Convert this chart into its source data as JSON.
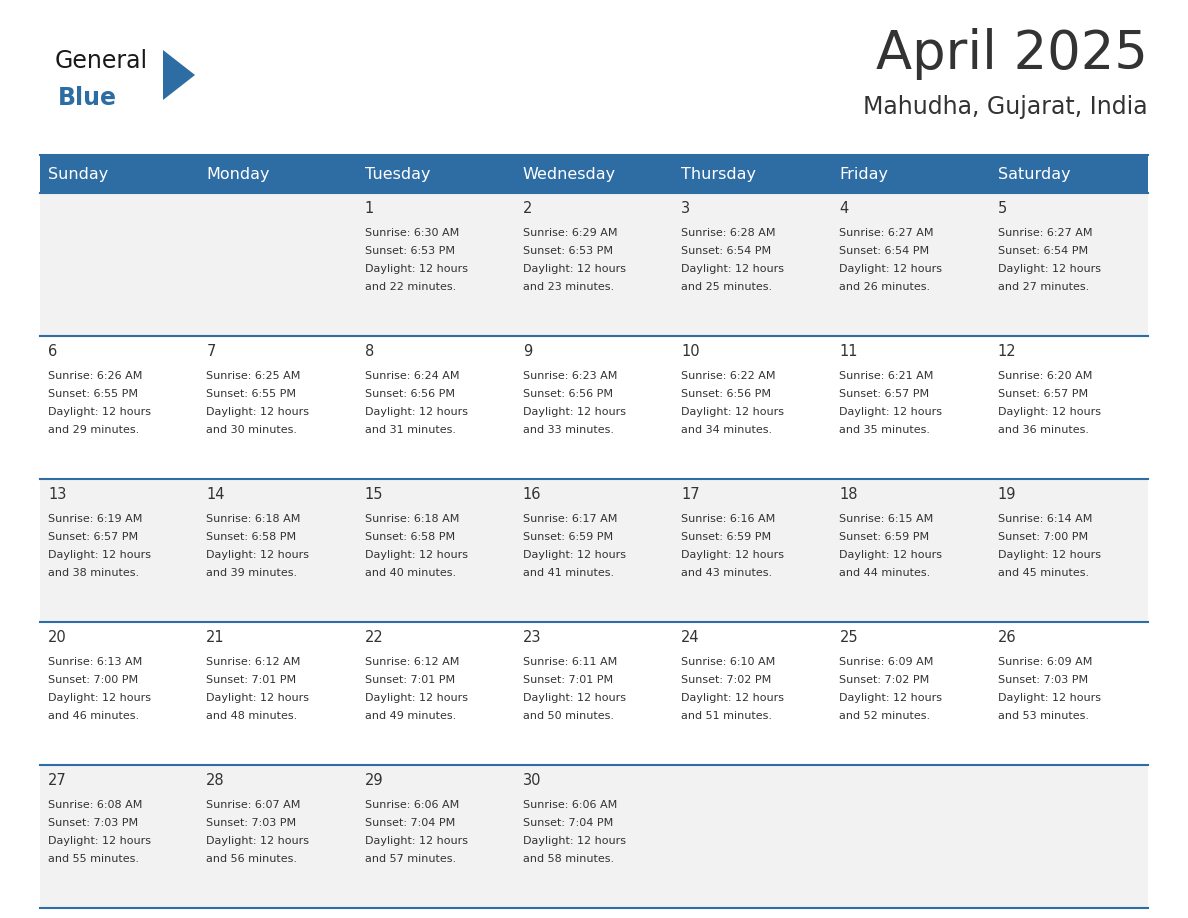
{
  "title": "April 2025",
  "subtitle": "Mahudha, Gujarat, India",
  "header_bg": "#2E6DA4",
  "header_text_color": "#FFFFFF",
  "row_bg_even": "#F2F2F2",
  "row_bg_odd": "#FFFFFF",
  "divider_color": "#2E6DA4",
  "days_of_week": [
    "Sunday",
    "Monday",
    "Tuesday",
    "Wednesday",
    "Thursday",
    "Friday",
    "Saturday"
  ],
  "calendar": [
    [
      {
        "day": "",
        "sunrise": "",
        "sunset": "",
        "daylight": ""
      },
      {
        "day": "",
        "sunrise": "",
        "sunset": "",
        "daylight": ""
      },
      {
        "day": "1",
        "sunrise": "Sunrise: 6:30 AM",
        "sunset": "Sunset: 6:53 PM",
        "daylight": "Daylight: 12 hours\nand 22 minutes."
      },
      {
        "day": "2",
        "sunrise": "Sunrise: 6:29 AM",
        "sunset": "Sunset: 6:53 PM",
        "daylight": "Daylight: 12 hours\nand 23 minutes."
      },
      {
        "day": "3",
        "sunrise": "Sunrise: 6:28 AM",
        "sunset": "Sunset: 6:54 PM",
        "daylight": "Daylight: 12 hours\nand 25 minutes."
      },
      {
        "day": "4",
        "sunrise": "Sunrise: 6:27 AM",
        "sunset": "Sunset: 6:54 PM",
        "daylight": "Daylight: 12 hours\nand 26 minutes."
      },
      {
        "day": "5",
        "sunrise": "Sunrise: 6:27 AM",
        "sunset": "Sunset: 6:54 PM",
        "daylight": "Daylight: 12 hours\nand 27 minutes."
      }
    ],
    [
      {
        "day": "6",
        "sunrise": "Sunrise: 6:26 AM",
        "sunset": "Sunset: 6:55 PM",
        "daylight": "Daylight: 12 hours\nand 29 minutes."
      },
      {
        "day": "7",
        "sunrise": "Sunrise: 6:25 AM",
        "sunset": "Sunset: 6:55 PM",
        "daylight": "Daylight: 12 hours\nand 30 minutes."
      },
      {
        "day": "8",
        "sunrise": "Sunrise: 6:24 AM",
        "sunset": "Sunset: 6:56 PM",
        "daylight": "Daylight: 12 hours\nand 31 minutes."
      },
      {
        "day": "9",
        "sunrise": "Sunrise: 6:23 AM",
        "sunset": "Sunset: 6:56 PM",
        "daylight": "Daylight: 12 hours\nand 33 minutes."
      },
      {
        "day": "10",
        "sunrise": "Sunrise: 6:22 AM",
        "sunset": "Sunset: 6:56 PM",
        "daylight": "Daylight: 12 hours\nand 34 minutes."
      },
      {
        "day": "11",
        "sunrise": "Sunrise: 6:21 AM",
        "sunset": "Sunset: 6:57 PM",
        "daylight": "Daylight: 12 hours\nand 35 minutes."
      },
      {
        "day": "12",
        "sunrise": "Sunrise: 6:20 AM",
        "sunset": "Sunset: 6:57 PM",
        "daylight": "Daylight: 12 hours\nand 36 minutes."
      }
    ],
    [
      {
        "day": "13",
        "sunrise": "Sunrise: 6:19 AM",
        "sunset": "Sunset: 6:57 PM",
        "daylight": "Daylight: 12 hours\nand 38 minutes."
      },
      {
        "day": "14",
        "sunrise": "Sunrise: 6:18 AM",
        "sunset": "Sunset: 6:58 PM",
        "daylight": "Daylight: 12 hours\nand 39 minutes."
      },
      {
        "day": "15",
        "sunrise": "Sunrise: 6:18 AM",
        "sunset": "Sunset: 6:58 PM",
        "daylight": "Daylight: 12 hours\nand 40 minutes."
      },
      {
        "day": "16",
        "sunrise": "Sunrise: 6:17 AM",
        "sunset": "Sunset: 6:59 PM",
        "daylight": "Daylight: 12 hours\nand 41 minutes."
      },
      {
        "day": "17",
        "sunrise": "Sunrise: 6:16 AM",
        "sunset": "Sunset: 6:59 PM",
        "daylight": "Daylight: 12 hours\nand 43 minutes."
      },
      {
        "day": "18",
        "sunrise": "Sunrise: 6:15 AM",
        "sunset": "Sunset: 6:59 PM",
        "daylight": "Daylight: 12 hours\nand 44 minutes."
      },
      {
        "day": "19",
        "sunrise": "Sunrise: 6:14 AM",
        "sunset": "Sunset: 7:00 PM",
        "daylight": "Daylight: 12 hours\nand 45 minutes."
      }
    ],
    [
      {
        "day": "20",
        "sunrise": "Sunrise: 6:13 AM",
        "sunset": "Sunset: 7:00 PM",
        "daylight": "Daylight: 12 hours\nand 46 minutes."
      },
      {
        "day": "21",
        "sunrise": "Sunrise: 6:12 AM",
        "sunset": "Sunset: 7:01 PM",
        "daylight": "Daylight: 12 hours\nand 48 minutes."
      },
      {
        "day": "22",
        "sunrise": "Sunrise: 6:12 AM",
        "sunset": "Sunset: 7:01 PM",
        "daylight": "Daylight: 12 hours\nand 49 minutes."
      },
      {
        "day": "23",
        "sunrise": "Sunrise: 6:11 AM",
        "sunset": "Sunset: 7:01 PM",
        "daylight": "Daylight: 12 hours\nand 50 minutes."
      },
      {
        "day": "24",
        "sunrise": "Sunrise: 6:10 AM",
        "sunset": "Sunset: 7:02 PM",
        "daylight": "Daylight: 12 hours\nand 51 minutes."
      },
      {
        "day": "25",
        "sunrise": "Sunrise: 6:09 AM",
        "sunset": "Sunset: 7:02 PM",
        "daylight": "Daylight: 12 hours\nand 52 minutes."
      },
      {
        "day": "26",
        "sunrise": "Sunrise: 6:09 AM",
        "sunset": "Sunset: 7:03 PM",
        "daylight": "Daylight: 12 hours\nand 53 minutes."
      }
    ],
    [
      {
        "day": "27",
        "sunrise": "Sunrise: 6:08 AM",
        "sunset": "Sunset: 7:03 PM",
        "daylight": "Daylight: 12 hours\nand 55 minutes."
      },
      {
        "day": "28",
        "sunrise": "Sunrise: 6:07 AM",
        "sunset": "Sunset: 7:03 PM",
        "daylight": "Daylight: 12 hours\nand 56 minutes."
      },
      {
        "day": "29",
        "sunrise": "Sunrise: 6:06 AM",
        "sunset": "Sunset: 7:04 PM",
        "daylight": "Daylight: 12 hours\nand 57 minutes."
      },
      {
        "day": "30",
        "sunrise": "Sunrise: 6:06 AM",
        "sunset": "Sunset: 7:04 PM",
        "daylight": "Daylight: 12 hours\nand 58 minutes."
      },
      {
        "day": "",
        "sunrise": "",
        "sunset": "",
        "daylight": ""
      },
      {
        "day": "",
        "sunrise": "",
        "sunset": "",
        "daylight": ""
      },
      {
        "day": "",
        "sunrise": "",
        "sunset": "",
        "daylight": ""
      }
    ]
  ],
  "logo_general_color": "#1a1a1a",
  "logo_blue_color": "#2E6DA4",
  "text_color": "#333333",
  "cell_text_size": 8.0,
  "day_num_size": 10.5,
  "header_size": 11.5,
  "title_size": 38,
  "subtitle_size": 17
}
